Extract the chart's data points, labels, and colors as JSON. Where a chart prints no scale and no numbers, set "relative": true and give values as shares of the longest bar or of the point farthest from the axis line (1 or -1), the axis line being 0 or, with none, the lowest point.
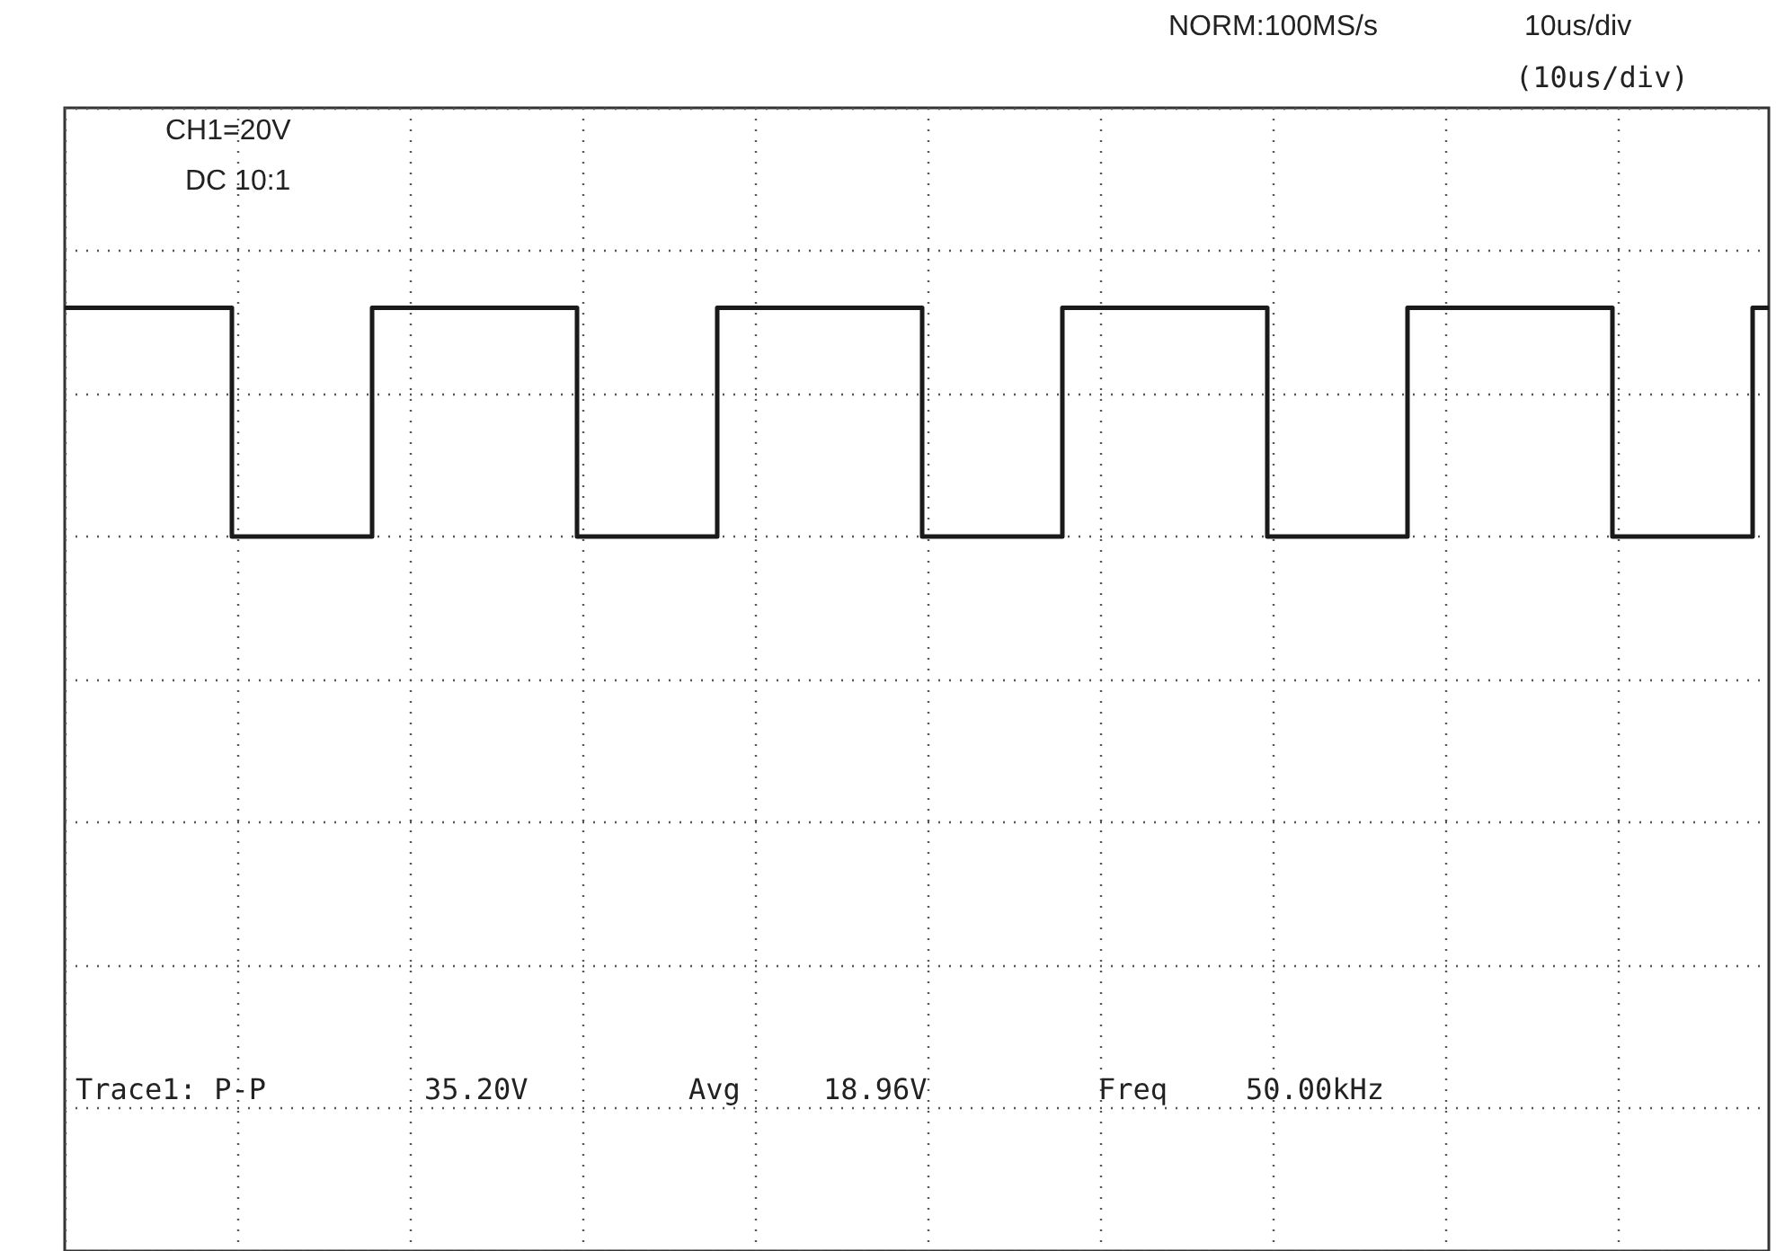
{
  "chart_data": {
    "type": "step",
    "relative": true,
    "grid": true,
    "line_style": "solid",
    "annotations": [
      "NORM:100MS/s",
      "10us/div",
      "(10us/div)",
      "CH1=20V",
      "DC 10:1",
      "Trace1: P-P",
      "35.20V",
      "Avg",
      "18.96V",
      "Freq",
      "50.00kHz"
    ],
    "categories": [
      null,
      null,
      null,
      null,
      null,
      null,
      null,
      null,
      null,
      null,
      null,
      null,
      null,
      null,
      null,
      null,
      null,
      null,
      null,
      null,
      null,
      null,
      null,
      null,
      null,
      null,
      null,
      null,
      null,
      null,
      null,
      null,
      null,
      null,
      null,
      null,
      null,
      null,
      null,
      null,
      null,
      null,
      null,
      null,
      null,
      null,
      null,
      null,
      null,
      null,
      null,
      null,
      null,
      null,
      null,
      null,
      null,
      null,
      null,
      null,
      null,
      null,
      null,
      null,
      null,
      null,
      null,
      null,
      null,
      null,
      null,
      null,
      null,
      null,
      null,
      null,
      null,
      null,
      null,
      null,
      null,
      null,
      null,
      null,
      null,
      null,
      null,
      null,
      null,
      null,
      null,
      null,
      null,
      null,
      null,
      null,
      null,
      null,
      null,
      null,
      null,
      null,
      null,
      null,
      null,
      null,
      null,
      null,
      null,
      null,
      null,
      null,
      null,
      null,
      null,
      null,
      null,
      null,
      null,
      null,
      null,
      null,
      null,
      null,
      null,
      null,
      null,
      null,
      null,
      null,
      null,
      null,
      null,
      null,
      null,
      null,
      null,
      null,
      null,
      null,
      null,
      null,
      null,
      null,
      null,
      null,
      null,
      null,
      null,
      null,
      null,
      null,
      null,
      null,
      null,
      null,
      null,
      null,
      null
    ],
    "series": [
      {
        "color": "#1a1a1a",
        "values": [
          1,
          1,
          1,
          1,
          1,
          1,
          1,
          1,
          1,
          1,
          1,
          1,
          1,
          1,
          1,
          1,
          0,
          0,
          0,
          0,
          0,
          0,
          0,
          0,
          0,
          0,
          0,
          0,
          0,
          1,
          1,
          1,
          1,
          1,
          1,
          1,
          1,
          1,
          1,
          1,
          1,
          1,
          1,
          1,
          1,
          1,
          1,
          1,
          0,
          0,
          0,
          0,
          0,
          0,
          0,
          0,
          0,
          0,
          0,
          0,
          0,
          1,
          1,
          1,
          1,
          1,
          1,
          1,
          1,
          1,
          1,
          1,
          1,
          1,
          1,
          1,
          1,
          1,
          1,
          1,
          0,
          0,
          0,
          0,
          0,
          0,
          0,
          0,
          0,
          0,
          0,
          0,
          0,
          1,
          1,
          1,
          1,
          1,
          1,
          1,
          1,
          1,
          1,
          1,
          1,
          1,
          1,
          1,
          1,
          1,
          1,
          1,
          0,
          0,
          0,
          0,
          0,
          0,
          0,
          0,
          0,
          0,
          0,
          0,
          0,
          1,
          1,
          1,
          1,
          1,
          1,
          1,
          1,
          1,
          1,
          1,
          1,
          1,
          1,
          1,
          1,
          1,
          1,
          1,
          0,
          0,
          0,
          0,
          0,
          0,
          0,
          0,
          0,
          0,
          0,
          0,
          0,
          1,
          1
        ]
      }
    ]
  }
}
